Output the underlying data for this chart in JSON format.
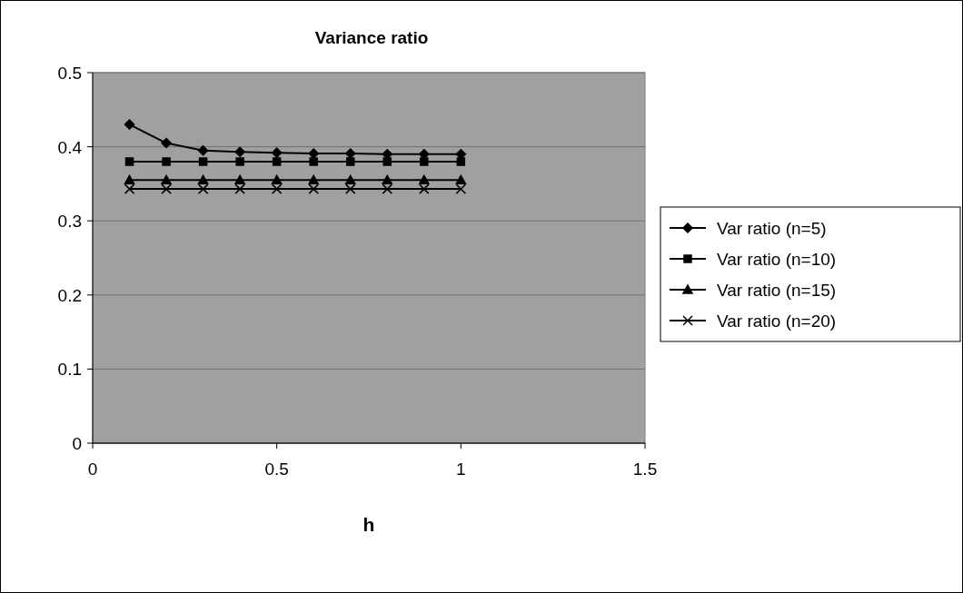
{
  "chart_data": {
    "type": "line",
    "title": "Variance ratio",
    "xlabel": "h",
    "x": [
      0.1,
      0.2,
      0.3,
      0.4,
      0.5,
      0.6,
      0.7,
      0.8,
      0.9,
      1.0
    ],
    "series": [
      {
        "name": "Var ratio (n=5)",
        "color": "#000000",
        "marker": "diamond",
        "values": [
          0.43,
          0.405,
          0.395,
          0.393,
          0.392,
          0.391,
          0.391,
          0.39,
          0.39,
          0.39
        ]
      },
      {
        "name": "Var ratio (n=10)",
        "color": "#000000",
        "marker": "square",
        "values": [
          0.38,
          0.38,
          0.38,
          0.38,
          0.38,
          0.38,
          0.38,
          0.38,
          0.38,
          0.38
        ]
      },
      {
        "name": "Var ratio (n=15)",
        "color": "#000000",
        "marker": "triangle",
        "values": [
          0.355,
          0.355,
          0.355,
          0.355,
          0.355,
          0.355,
          0.355,
          0.355,
          0.355,
          0.355
        ]
      },
      {
        "name": "Var ratio (n=20)",
        "color": "#000000",
        "marker": "cross",
        "values": [
          0.343,
          0.343,
          0.343,
          0.343,
          0.343,
          0.343,
          0.343,
          0.343,
          0.343,
          0.343
        ]
      }
    ],
    "xlim": [
      0,
      1.5
    ],
    "xticks": [
      0,
      0.5,
      1,
      1.5
    ],
    "ylim": [
      0,
      0.5
    ],
    "yticks": [
      0,
      0.1,
      0.2,
      0.3,
      0.4,
      0.5
    ],
    "grid": "y",
    "legend": "right",
    "line_style": "solid"
  }
}
